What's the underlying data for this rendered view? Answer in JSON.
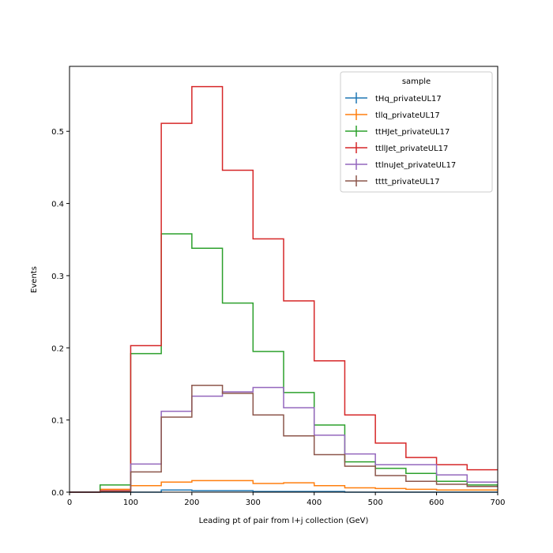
{
  "chart_data": {
    "type": "histogram-step",
    "title": "",
    "xlabel": "Leading pt of pair from l+j collection (GeV)",
    "ylabel": "Events",
    "xlim": [
      0,
      700
    ],
    "ylim": [
      0,
      0.59
    ],
    "x_ticks": [
      0,
      100,
      200,
      300,
      400,
      500,
      600,
      700
    ],
    "y_ticks": [
      0.0,
      0.1,
      0.2,
      0.3,
      0.4,
      0.5
    ],
    "x_tick_labels": [
      "0",
      "100",
      "200",
      "300",
      "400",
      "500",
      "600",
      "700"
    ],
    "y_tick_labels": [
      "0.0",
      "0.1",
      "0.2",
      "0.3",
      "0.4",
      "0.5"
    ],
    "grid": false,
    "bin_edges": [
      0,
      50,
      100,
      150,
      200,
      250,
      300,
      350,
      400,
      450,
      500,
      550,
      600,
      650,
      700
    ],
    "legend": {
      "title": "sample",
      "placement": "top-right"
    },
    "series": [
      {
        "name": "tHq_privateUL17",
        "color": "#1f77b4",
        "values": [
          0.0,
          0.0,
          0.0,
          0.003,
          0.002,
          0.002,
          0.001,
          0.001,
          0.001,
          0.0,
          0.0,
          0.0,
          0.0,
          0.0
        ]
      },
      {
        "name": "tllq_privateUL17",
        "color": "#ff7f0e",
        "values": [
          0.0,
          0.004,
          0.009,
          0.014,
          0.016,
          0.016,
          0.012,
          0.013,
          0.009,
          0.006,
          0.005,
          0.004,
          0.003,
          0.003
        ]
      },
      {
        "name": "ttHJet_privateUL17",
        "color": "#2ca02c",
        "values": [
          0.0,
          0.01,
          0.192,
          0.358,
          0.338,
          0.262,
          0.195,
          0.138,
          0.093,
          0.042,
          0.033,
          0.026,
          0.015,
          0.01
        ]
      },
      {
        "name": "ttllJet_privateUL17",
        "color": "#d62728",
        "values": [
          0.0,
          0.002,
          0.203,
          0.511,
          0.562,
          0.446,
          0.351,
          0.265,
          0.182,
          0.107,
          0.068,
          0.048,
          0.038,
          0.031
        ]
      },
      {
        "name": "ttlnuJet_privateUL17",
        "color": "#9467bd",
        "values": [
          0.0,
          0.001,
          0.039,
          0.112,
          0.133,
          0.139,
          0.145,
          0.117,
          0.079,
          0.053,
          0.038,
          0.038,
          0.024,
          0.014
        ]
      },
      {
        "name": "tttt_privateUL17",
        "color": "#8c564b",
        "values": [
          0.0,
          0.001,
          0.028,
          0.104,
          0.148,
          0.137,
          0.107,
          0.078,
          0.052,
          0.036,
          0.023,
          0.015,
          0.011,
          0.008
        ]
      }
    ]
  }
}
